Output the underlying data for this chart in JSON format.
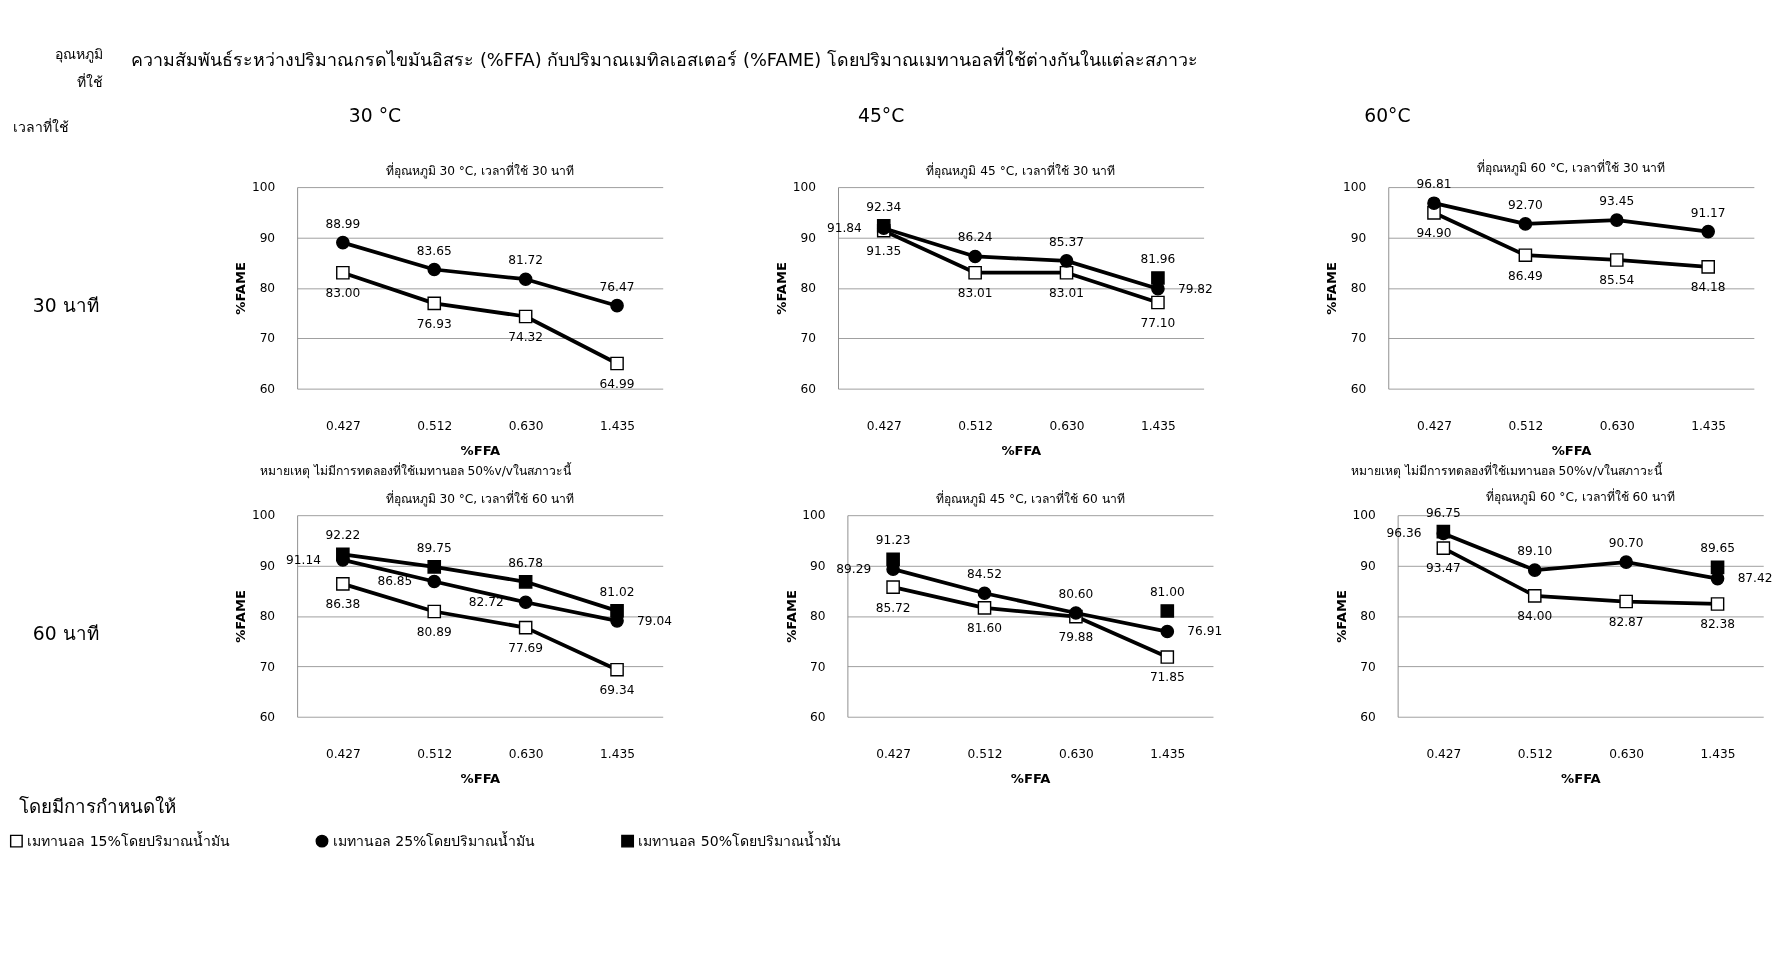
{
  "chart_data": [
    {
      "type": "other",
      "title": "ความสัมพันธ์ระหว่างปริมาณกรดไขมันอิสระ (%FFA) กับปริมาณเมทิลเอสเตอร์ (%FAME)  โดยปริมาณเมทานอลที่ใช้ต่างกันในแต่ละสภาวะ",
      "annotations": [
        "อุณหภูมิ",
        "ที่ใช้",
        "เวลาที่ใช้",
        "30 °C",
        "45°C",
        "60°C",
        "30 นาที",
        "60 นาที",
        "โดยมีการกำหนดให้"
      ]
    },
    {
      "type": "line",
      "title": "ที่อุณหภูมิ 30 °C, เวลาที่ใช้ 30 นาที",
      "xlabel": "%FFA",
      "ylabel": "%FAME",
      "categories": [
        "0.427",
        "0.512",
        "0.630",
        "1.435"
      ],
      "ylim": [
        60,
        100
      ],
      "yticks": [
        60,
        70,
        80,
        90,
        100
      ],
      "grid": "y",
      "line_style": "solid",
      "annotations": [
        "หมายเหตุ ไม่มีการทดลองที่ใช้เมทานอล 50%v/vในสภาวะนี้"
      ],
      "series": [
        {
          "color": "#000000",
          "marker": "square",
          "values": [
            83.0,
            76.93,
            74.32,
            64.99
          ],
          "value_labels": [
            "83.00",
            "76.93",
            "74.32",
            "64.99"
          ]
        },
        {
          "color": "#000000",
          "marker": "circle",
          "values": [
            88.99,
            83.65,
            81.72,
            76.47
          ],
          "value_labels": [
            "88.99",
            "83.65",
            "81.72",
            "76.47"
          ]
        }
      ]
    },
    {
      "type": "line",
      "title": "ที่อุณหภูมิ 45 °C, เวลาที่ใช้ 30 นาที",
      "xlabel": "%FFA",
      "ylabel": "%FAME",
      "categories": [
        "0.427",
        "0.512",
        "0.630",
        "1.435"
      ],
      "ylim": [
        60,
        100
      ],
      "yticks": [
        60,
        70,
        80,
        90,
        100
      ],
      "grid": "y",
      "line_style": "solid",
      "series": [
        {
          "color": "#000000",
          "marker": "square",
          "values": [
            91.35,
            83.01,
            83.01,
            77.1
          ],
          "value_labels": [
            "91.35",
            "83.01",
            "83.01",
            "77.10"
          ]
        },
        {
          "color": "#000000",
          "marker": "circle",
          "values": [
            91.84,
            86.24,
            85.37,
            79.82
          ],
          "value_labels": [
            "91.84",
            "86.24",
            "85.37",
            "79.82"
          ]
        },
        {
          "color": "#000000",
          "marker": "square",
          "type": "scatter",
          "values": [
            92.34,
            null,
            null,
            81.96
          ],
          "value_labels": [
            "92.34",
            null,
            null,
            "81.96"
          ]
        }
      ]
    },
    {
      "type": "line",
      "title": "ที่อุณหภูมิ 60 °C, เวลาที่ใช้ 30 นาที",
      "xlabel": "%FFA",
      "ylabel": "%FAME",
      "categories": [
        "0.427",
        "0.512",
        "0.630",
        "1.435"
      ],
      "ylim": [
        60,
        100
      ],
      "yticks": [
        60,
        70,
        80,
        90,
        100
      ],
      "grid": "y",
      "line_style": "solid",
      "annotations": [
        "หมายเหตุ ไม่มีการทดลองที่ใช้เมทานอล 50%v/vในสภาวะนี้"
      ],
      "series": [
        {
          "color": "#000000",
          "marker": "square",
          "values": [
            94.9,
            86.49,
            85.54,
            84.18
          ],
          "value_labels": [
            "94.90",
            "86.49",
            "85.54",
            "84.18"
          ]
        },
        {
          "color": "#000000",
          "marker": "circle",
          "values": [
            96.81,
            92.7,
            93.45,
            91.17
          ],
          "value_labels": [
            "96.81",
            "92.70",
            "93.45",
            "91.17"
          ]
        }
      ]
    },
    {
      "type": "line",
      "title": "ที่อุณหภูมิ 30 °C, เวลาที่ใช้ 60 นาที",
      "xlabel": "%FFA",
      "ylabel": "%FAME",
      "categories": [
        "0.427",
        "0.512",
        "0.630",
        "1.435"
      ],
      "ylim": [
        60,
        100
      ],
      "yticks": [
        60,
        70,
        80,
        90,
        100
      ],
      "grid": "y",
      "line_style": "solid",
      "legend": "bottom",
      "series": [
        {
          "name": "เมทานอล 15%โดยปริมาณน้ำมัน",
          "color": "#000000",
          "marker": "square",
          "values": [
            86.38,
            80.89,
            77.69,
            69.34
          ],
          "value_labels": [
            "86.38",
            "80.89",
            "77.69",
            "69.34"
          ]
        },
        {
          "name": "เมทานอล 25%โดยปริมาณน้ำมัน",
          "color": "#000000",
          "marker": "circle",
          "values": [
            91.14,
            86.85,
            82.72,
            79.04
          ],
          "value_labels": [
            "91.14",
            "86.85",
            "82.72",
            "79.04"
          ]
        },
        {
          "name": "เมทานอล 50%โดยปริมาณน้ำมัน",
          "color": "#000000",
          "marker": "square",
          "values": [
            92.22,
            89.75,
            86.78,
            81.02
          ],
          "value_labels": [
            "92.22",
            "89.75",
            "86.78",
            "81.02"
          ]
        }
      ]
    },
    {
      "type": "line",
      "title": "ที่อุณหภูมิ 45 °C, เวลาที่ใช้ 60 นาที",
      "xlabel": "%FFA",
      "ylabel": "%FAME",
      "categories": [
        "0.427",
        "0.512",
        "0.630",
        "1.435"
      ],
      "ylim": [
        60,
        100
      ],
      "yticks": [
        60,
        70,
        80,
        90,
        100
      ],
      "grid": "y",
      "line_style": "solid",
      "series": [
        {
          "color": "#000000",
          "marker": "square",
          "values": [
            85.72,
            81.6,
            79.88,
            71.85
          ],
          "value_labels": [
            "85.72",
            "81.60",
            "79.88",
            "71.85"
          ]
        },
        {
          "color": "#000000",
          "marker": "circle",
          "values": [
            89.29,
            84.52,
            80.6,
            76.91
          ],
          "value_labels": [
            "89.29",
            "84.52",
            "80.60",
            "76.91"
          ]
        },
        {
          "color": "#000000",
          "marker": "square",
          "type": "scatter",
          "values": [
            91.23,
            null,
            null,
            81.0
          ],
          "value_labels": [
            "91.23",
            null,
            null,
            "81.00"
          ]
        }
      ]
    },
    {
      "type": "line",
      "title": "ที่อุณหภูมิ 60 °C, เวลาที่ใช้ 60 นาที",
      "xlabel": "%FFA",
      "ylabel": "%FAME",
      "categories": [
        "0.427",
        "0.512",
        "0.630",
        "1.435"
      ],
      "ylim": [
        60,
        100
      ],
      "yticks": [
        60,
        70,
        80,
        90,
        100
      ],
      "grid": "y",
      "line_style": "solid",
      "series": [
        {
          "color": "#000000",
          "marker": "square",
          "values": [
            93.47,
            84.0,
            82.87,
            82.38
          ],
          "value_labels": [
            "93.47",
            "84.00",
            "82.87",
            "82.38"
          ]
        },
        {
          "color": "#000000",
          "marker": "circle",
          "values": [
            96.36,
            89.1,
            90.7,
            87.42
          ],
          "value_labels": [
            "96.36",
            "89.10",
            "90.70",
            "87.42"
          ]
        },
        {
          "color": "#000000",
          "marker": "square",
          "type": "scatter",
          "values": [
            96.75,
            null,
            null,
            89.65
          ],
          "value_labels": [
            "96.75",
            null,
            null,
            "89.65"
          ]
        }
      ]
    }
  ]
}
